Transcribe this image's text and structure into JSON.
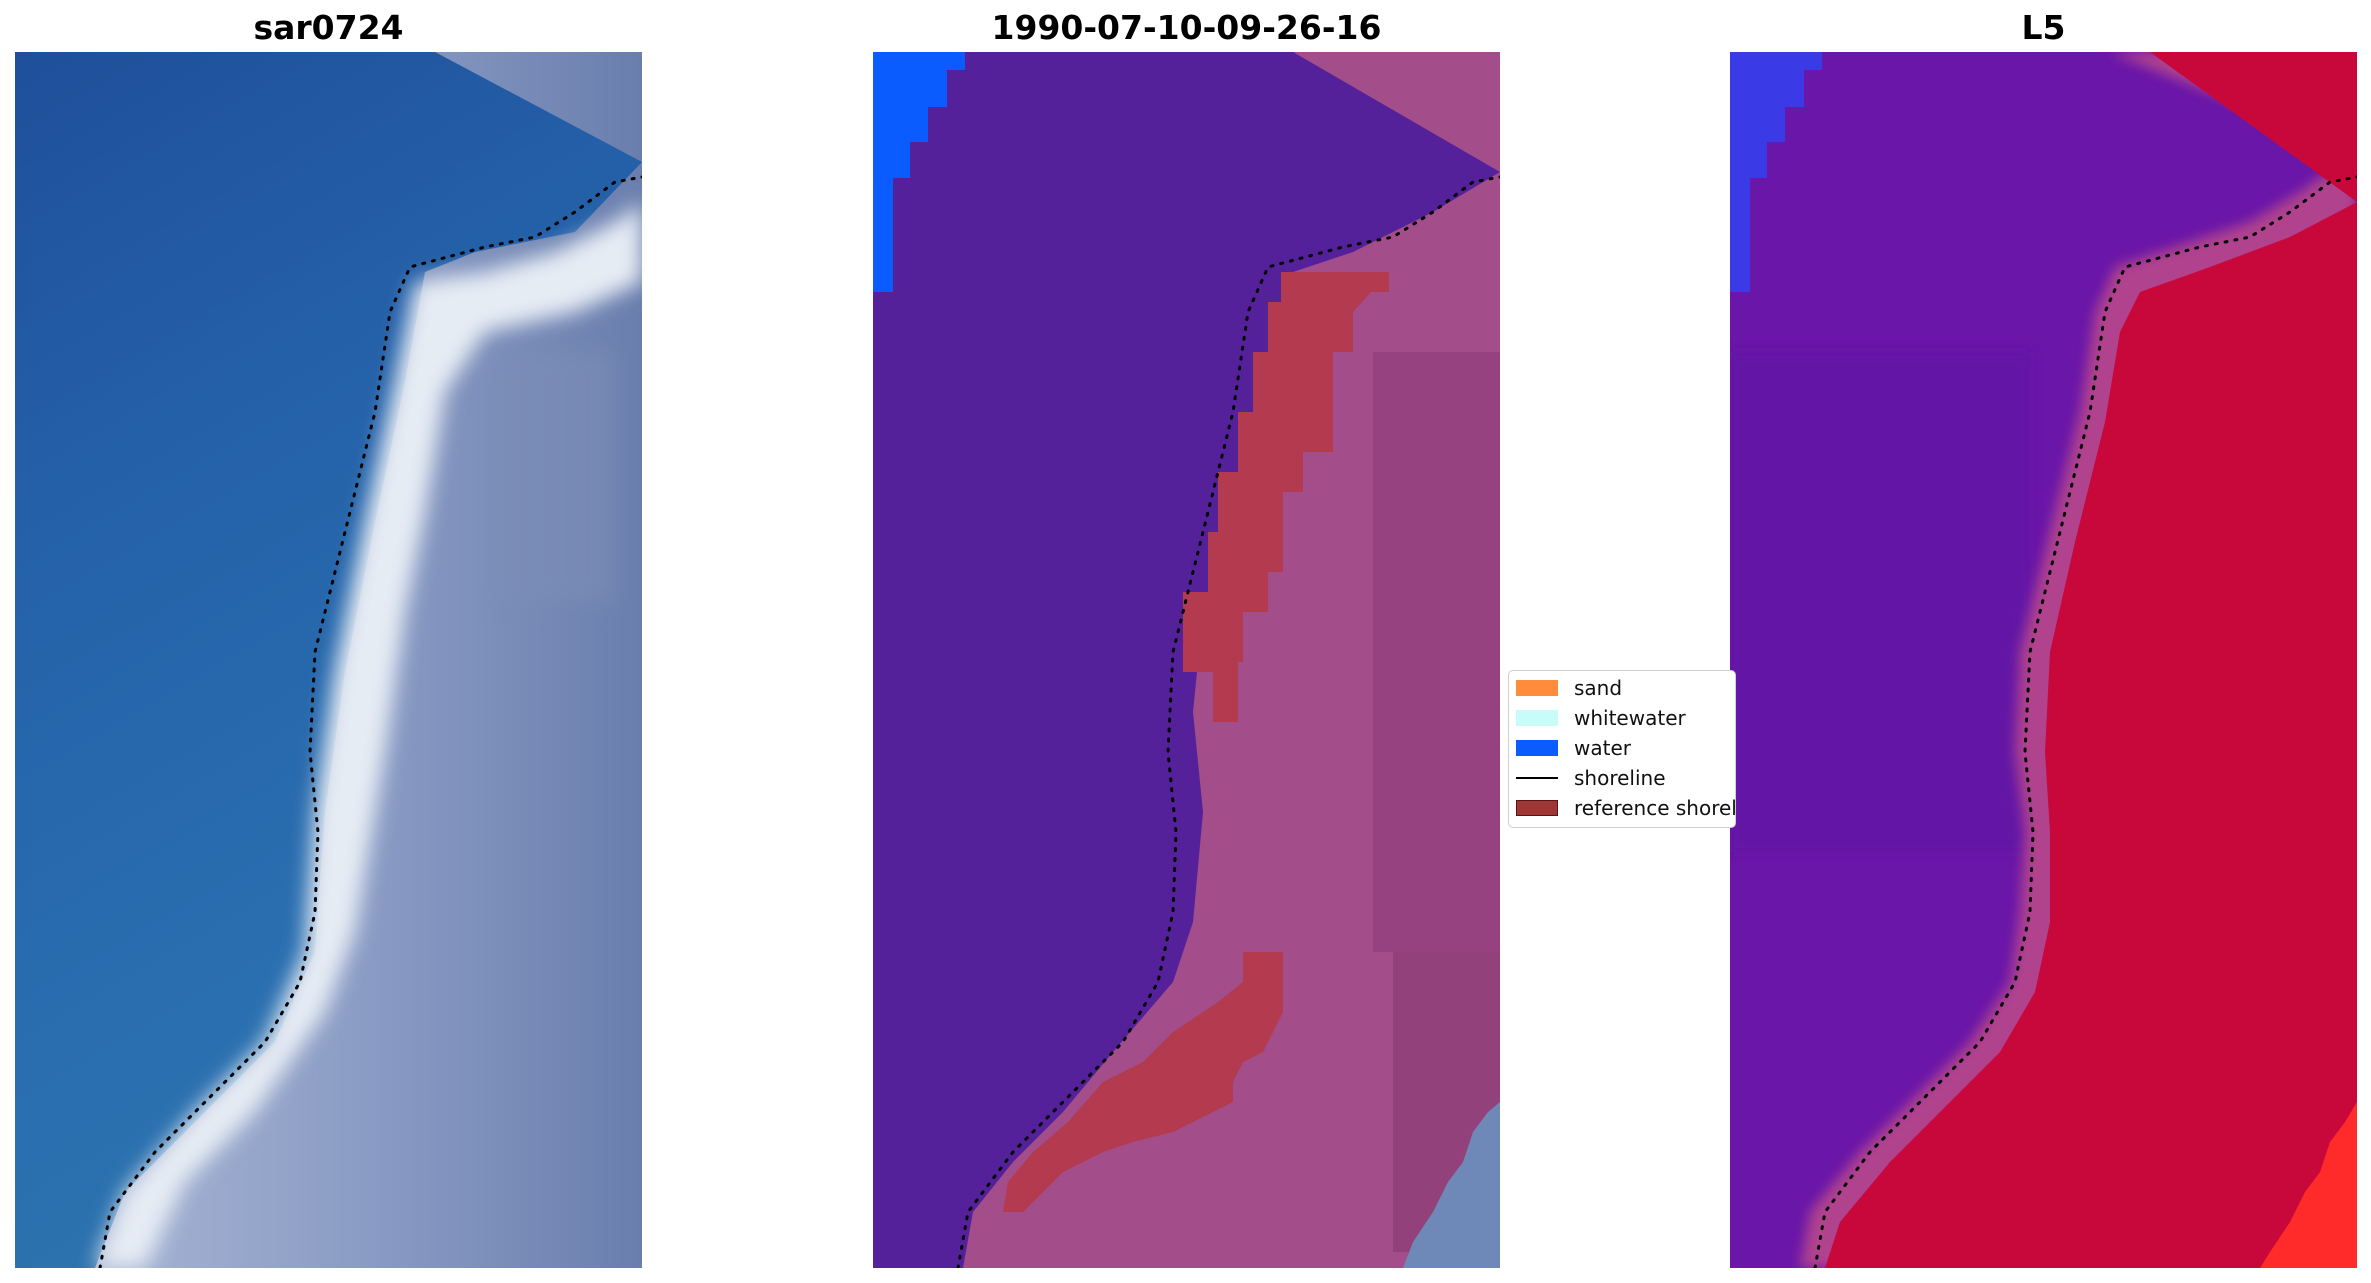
{
  "panels": [
    {
      "title": "sar0724",
      "key": "rgb"
    },
    {
      "title": "1990-07-10-09-26-16",
      "key": "classified"
    },
    {
      "title": "L5",
      "key": "mndwi"
    }
  ],
  "legend": {
    "items": [
      {
        "label": "sand",
        "type": "patch",
        "color": "#ff8c3a"
      },
      {
        "label": "whitewater",
        "type": "patch",
        "color": "#c8fcf8"
      },
      {
        "label": "water",
        "type": "patch",
        "color": "#0a5cff"
      },
      {
        "label": "shoreline",
        "type": "line",
        "color": "#000000"
      },
      {
        "label": "reference shoreline",
        "type": "patch",
        "color": "#9e3636",
        "edge": "#5a1414"
      }
    ]
  },
  "colors": {
    "shoreline_dots": "#000000",
    "sea_blue": "#2a65a8",
    "whitewater": "#e8eef4",
    "land_gray_blue": "#7d90b8",
    "class_water": "#55219a",
    "class_water_bright": "#0a5cff",
    "land_pink": "#a34d8a",
    "reference_red": "#b33a4f",
    "index_purple": "#6a16a8",
    "index_red": "#c8083a",
    "index_bright_red": "#ff2a2a"
  }
}
